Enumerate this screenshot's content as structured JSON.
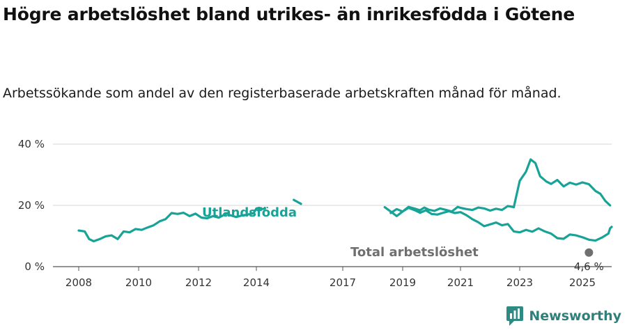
{
  "header": {
    "title": "Högre arbetslöshet bland utrikes- än inrikesfödda i Götene",
    "subtitle": "Arbetssökande som andel av den registerbaserade arbetskraften månad för månad."
  },
  "brand": {
    "name": "Newsworthy",
    "icon": "newsworthy-logo-icon",
    "color": "#2f8a84"
  },
  "chart_data": {
    "type": "line",
    "title": "Högre arbetslöshet bland utrikes- än inrikesfödda i Götene",
    "subtitle": "Arbetssökande som andel av den registerbaserade arbetskraften månad för månad.",
    "xlabel": "",
    "ylabel": "",
    "x_ticks": [
      "2008",
      "2010",
      "2012",
      "2014",
      "2017",
      "2019",
      "2021",
      "2023",
      "2025"
    ],
    "y_ticks": [
      "0 %",
      "20 %",
      "40 %"
    ],
    "ylim": [
      0,
      40
    ],
    "xlim": [
      2007.2,
      2025.9
    ],
    "grid": true,
    "end_label": "4,6 %",
    "series": [
      {
        "name": "Utlandsfödda",
        "color": "#17a397",
        "points": [
          [
            2008.0,
            11.8
          ],
          [
            2008.2,
            11.5
          ],
          [
            2008.35,
            9.0
          ],
          [
            2008.5,
            8.3
          ],
          [
            2008.7,
            9.0
          ],
          [
            2008.9,
            9.9
          ],
          [
            2009.1,
            10.2
          ],
          [
            2009.3,
            9.0
          ],
          [
            2009.5,
            11.5
          ],
          [
            2009.7,
            11.2
          ],
          [
            2009.9,
            12.3
          ],
          [
            2010.1,
            12.0
          ],
          [
            2010.3,
            12.8
          ],
          [
            2010.5,
            13.5
          ],
          [
            2010.7,
            14.8
          ],
          [
            2010.9,
            15.5
          ],
          [
            2011.1,
            17.5
          ],
          [
            2011.3,
            17.2
          ],
          [
            2011.5,
            17.6
          ],
          [
            2011.7,
            16.5
          ],
          [
            2011.9,
            17.3
          ],
          [
            2012.1,
            16.0
          ],
          [
            2012.3,
            15.8
          ],
          [
            2012.5,
            16.5
          ],
          [
            2012.7,
            16.0
          ],
          [
            2012.9,
            17.0
          ],
          [
            2013.0,
            17.4
          ],
          null,
          [
            2013.1,
            16.8
          ],
          [
            2013.3,
            16.2
          ],
          [
            2013.5,
            16.7
          ],
          [
            2013.7,
            17.0
          ],
          [
            2013.9,
            17.4
          ],
          [
            2014.0,
            19.0
          ],
          [
            2014.1,
            19.2
          ],
          [
            2014.2,
            18.8
          ],
          [
            2014.3,
            19.0
          ],
          null,
          [
            2015.3,
            21.8
          ],
          [
            2015.55,
            20.5
          ],
          null,
          [
            2018.6,
            17.5
          ],
          [
            2018.8,
            18.8
          ],
          [
            2019.0,
            18.0
          ],
          [
            2019.2,
            19.5
          ],
          [
            2019.4,
            19.0
          ],
          [
            2019.6,
            18.4
          ],
          [
            2019.75,
            19.3
          ],
          [
            2019.9,
            18.6
          ],
          [
            2020.1,
            18.2
          ],
          [
            2020.3,
            19.0
          ],
          [
            2020.5,
            18.5
          ],
          [
            2020.7,
            18.0
          ],
          [
            2020.9,
            19.5
          ],
          [
            2021.0,
            19.2
          ],
          [
            2021.2,
            18.8
          ],
          [
            2021.4,
            18.5
          ],
          [
            2021.6,
            19.3
          ],
          [
            2021.8,
            19.0
          ],
          [
            2022.0,
            18.3
          ],
          [
            2022.2,
            18.9
          ],
          [
            2022.4,
            18.5
          ],
          [
            2022.6,
            19.8
          ],
          [
            2022.8,
            19.4
          ],
          [
            2023.0,
            28.0
          ],
          [
            2023.2,
            31.0
          ],
          [
            2023.35,
            35.0
          ],
          [
            2023.5,
            33.8
          ],
          [
            2023.65,
            29.5
          ],
          [
            2023.85,
            27.8
          ],
          [
            2024.0,
            27.0
          ],
          [
            2024.2,
            28.3
          ],
          [
            2024.4,
            26.2
          ],
          [
            2024.6,
            27.4
          ],
          [
            2024.8,
            26.8
          ],
          [
            2025.0,
            27.5
          ],
          [
            2025.2,
            26.9
          ],
          [
            2025.4,
            24.7
          ],
          [
            2025.55,
            23.8
          ],
          [
            2025.7,
            21.5
          ],
          [
            2025.85,
            20.0
          ],
          null,
          [
            2018.4,
            19.4
          ],
          [
            2018.6,
            18.0
          ],
          [
            2018.8,
            16.5
          ],
          [
            2019.0,
            18.0
          ],
          [
            2019.2,
            19.2
          ],
          [
            2019.4,
            18.5
          ],
          [
            2019.6,
            17.6
          ],
          [
            2019.8,
            18.4
          ],
          [
            2020.0,
            17.2
          ],
          [
            2020.2,
            17.0
          ],
          [
            2020.4,
            17.6
          ],
          [
            2020.6,
            18.1
          ],
          [
            2020.8,
            17.5
          ],
          [
            2021.0,
            17.8
          ],
          [
            2021.2,
            16.8
          ],
          [
            2021.4,
            15.5
          ],
          [
            2021.6,
            14.5
          ],
          [
            2021.8,
            13.2
          ],
          [
            2022.0,
            13.8
          ],
          [
            2022.2,
            14.4
          ],
          [
            2022.4,
            13.5
          ],
          [
            2022.6,
            13.9
          ],
          [
            2022.8,
            11.5
          ],
          [
            2023.0,
            11.2
          ],
          [
            2023.2,
            12.0
          ],
          [
            2023.4,
            11.4
          ],
          [
            2023.6,
            12.5
          ],
          [
            2023.8,
            11.5
          ],
          [
            2024.0,
            10.8
          ],
          [
            2024.2,
            9.3
          ],
          [
            2024.4,
            9.1
          ],
          [
            2024.6,
            10.5
          ],
          [
            2024.8,
            10.2
          ],
          [
            2025.0,
            9.6
          ],
          [
            2025.2,
            8.8
          ],
          [
            2025.4,
            8.5
          ],
          [
            2025.6,
            9.5
          ],
          [
            2025.8,
            10.8
          ],
          [
            2025.85,
            12.5
          ],
          [
            2025.9,
            13.0
          ]
        ]
      },
      {
        "name": "Total arbetslöshet",
        "color": "#6f6f6f",
        "points": []
      }
    ]
  }
}
